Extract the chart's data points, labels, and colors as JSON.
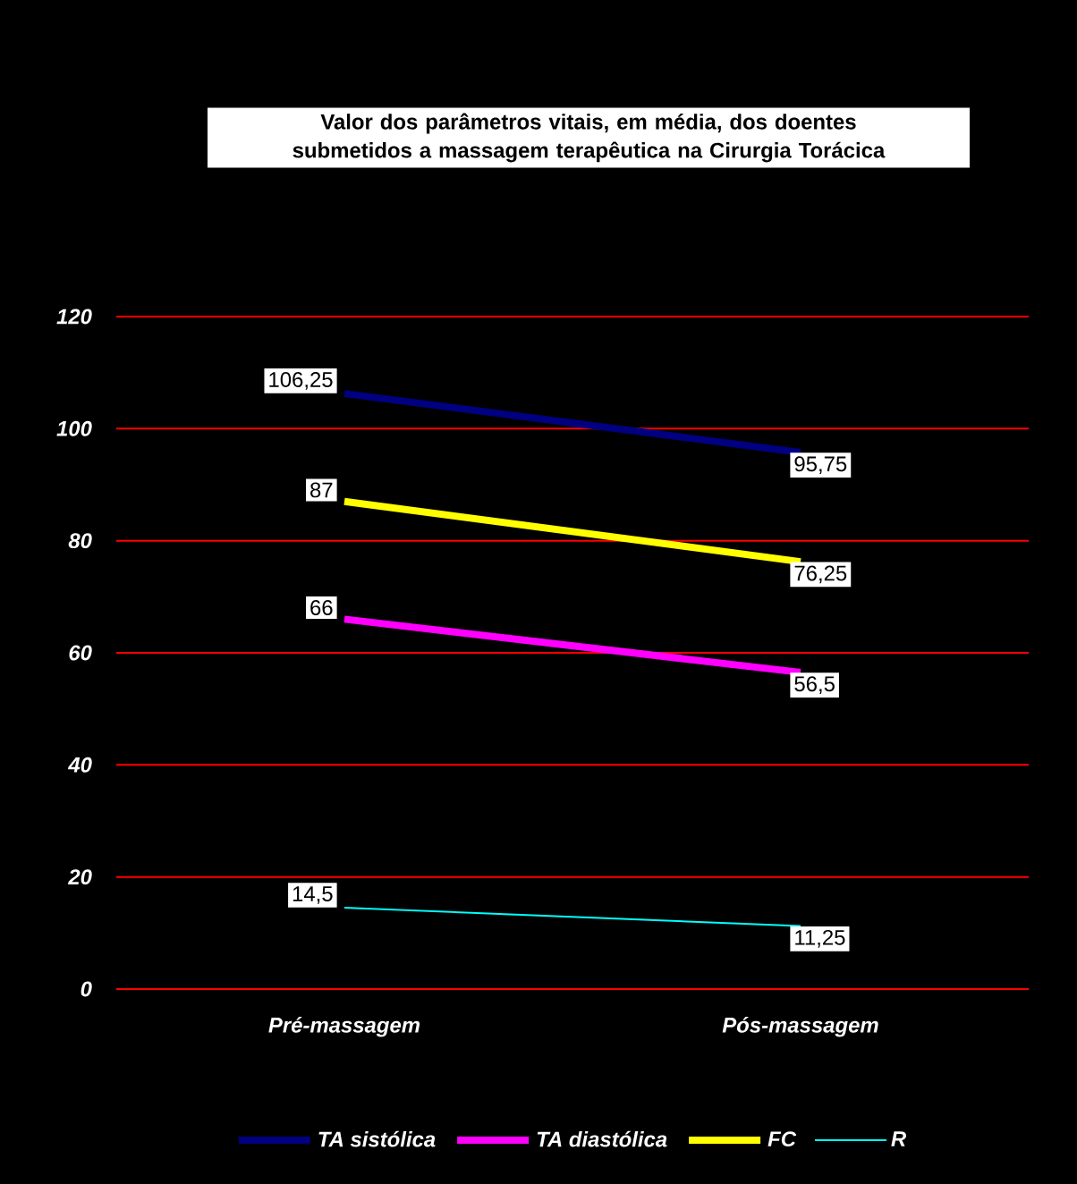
{
  "chart_data": {
    "type": "line",
    "title": "Valor dos parâmetros vitais, em média, dos doentes submetidos a massagem terapêutica na Cirurgia Torácica",
    "categories": [
      "Pré-massagem",
      "Pós-massagem"
    ],
    "series": [
      {
        "name": "TA sistólica",
        "color": "#000080",
        "values": [
          106.25,
          95.75
        ],
        "value_labels": [
          "106,25",
          "95,75"
        ]
      },
      {
        "name": "TA diastólica",
        "color": "#ff00ff",
        "values": [
          66,
          56.5
        ],
        "value_labels": [
          "66",
          "56,5"
        ]
      },
      {
        "name": "FC",
        "color": "#ffff00",
        "values": [
          87,
          76.25
        ],
        "value_labels": [
          "87",
          "76,25"
        ]
      },
      {
        "name": "R",
        "color": "#00ffff",
        "values": [
          14.5,
          11.25
        ],
        "value_labels": [
          "14,5",
          "11,25"
        ]
      }
    ],
    "ylim": [
      0,
      120
    ],
    "yticks": [
      0,
      20,
      40,
      60,
      80,
      100,
      120
    ],
    "grid": "y",
    "legend": "bottom",
    "marker": "none",
    "line_style": "solid"
  }
}
